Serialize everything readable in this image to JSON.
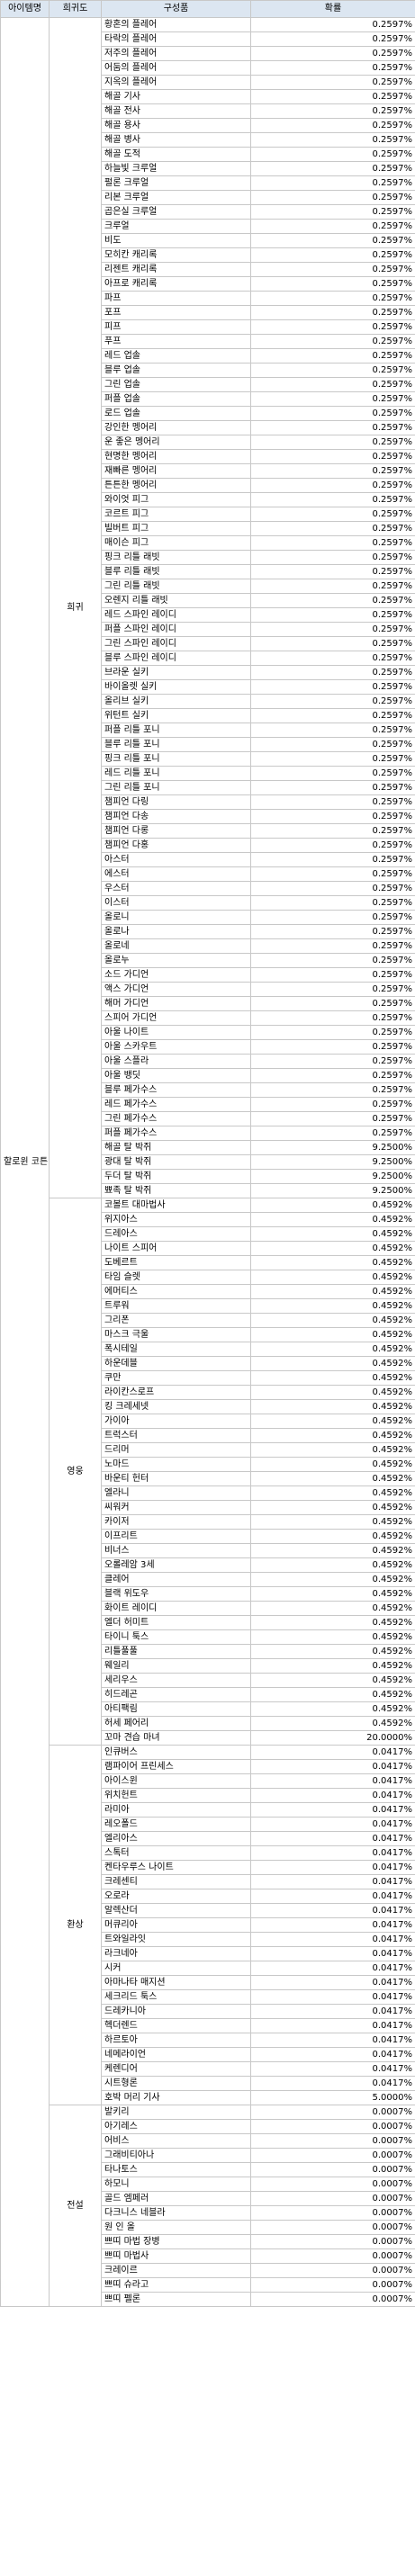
{
  "headers": [
    "아이템명",
    "희귀도",
    "구성품",
    "확률"
  ],
  "item_name": "할로윈 코튼",
  "groups": [
    {
      "grade": "희귀",
      "rows": [
        [
          "황혼의 플레어",
          "0.2597%"
        ],
        [
          "타락의 플레어",
          "0.2597%"
        ],
        [
          "저주의 플레어",
          "0.2597%"
        ],
        [
          "어둠의 플레어",
          "0.2597%"
        ],
        [
          "지옥의 플레어",
          "0.2597%"
        ],
        [
          "해골 기사",
          "0.2597%"
        ],
        [
          "해골 전사",
          "0.2597%"
        ],
        [
          "해골 용사",
          "0.2597%"
        ],
        [
          "해골 병사",
          "0.2597%"
        ],
        [
          "해골 도적",
          "0.2597%"
        ],
        [
          "하늘빛 크루얼",
          "0.2597%"
        ],
        [
          "펄론 크루얼",
          "0.2597%"
        ],
        [
          "리본 크루얼",
          "0.2597%"
        ],
        [
          "곱은실 크루얼",
          "0.2597%"
        ],
        [
          "크루얼",
          "0.2597%"
        ],
        [
          "비도",
          "0.2597%"
        ],
        [
          "모히칸 캐리록",
          "0.2597%"
        ],
        [
          "리젠트 캐리록",
          "0.2597%"
        ],
        [
          "아프로 캐리록",
          "0.2597%"
        ],
        [
          "파프",
          "0.2597%"
        ],
        [
          "포프",
          "0.2597%"
        ],
        [
          "피프",
          "0.2597%"
        ],
        [
          "푸프",
          "0.2597%"
        ],
        [
          "레드 업솔",
          "0.2597%"
        ],
        [
          "블루 업솔",
          "0.2597%"
        ],
        [
          "그린 업솔",
          "0.2597%"
        ],
        [
          "퍼플 업솔",
          "0.2597%"
        ],
        [
          "로드 업솔",
          "0.2597%"
        ],
        [
          "강인한 멩어리",
          "0.2597%"
        ],
        [
          "운 좋은 멩어리",
          "0.2597%"
        ],
        [
          "현명한 멩어리",
          "0.2597%"
        ],
        [
          "재빠른 멩어리",
          "0.2597%"
        ],
        [
          "튼튼한 멩어리",
          "0.2597%"
        ],
        [
          "와이엇 피그",
          "0.2597%"
        ],
        [
          "코르트 피그",
          "0.2597%"
        ],
        [
          "빌버트 피그",
          "0.2597%"
        ],
        [
          "매이슨 피그",
          "0.2597%"
        ],
        [
          "핑크 리틀 래빗",
          "0.2597%"
        ],
        [
          "블루 리틀 래빗",
          "0.2597%"
        ],
        [
          "그린 리틀 래빗",
          "0.2597%"
        ],
        [
          "오렌지 리틀 래빗",
          "0.2597%"
        ],
        [
          "레드 스파인 레이디",
          "0.2597%"
        ],
        [
          "퍼플 스파인 레이디",
          "0.2597%"
        ],
        [
          "그린 스파인 레이디",
          "0.2597%"
        ],
        [
          "블루 스파인 레이디",
          "0.2597%"
        ],
        [
          "브라운 실키",
          "0.2597%"
        ],
        [
          "바이올렛 실키",
          "0.2597%"
        ],
        [
          "올리브 실키",
          "0.2597%"
        ],
        [
          "위턴트 실키",
          "0.2597%"
        ],
        [
          "퍼플 리틀 포니",
          "0.2597%"
        ],
        [
          "블루 리틀 포니",
          "0.2597%"
        ],
        [
          "핑크 리틀 포니",
          "0.2597%"
        ],
        [
          "레드 리틀 포니",
          "0.2597%"
        ],
        [
          "그린 리틀 포니",
          "0.2597%"
        ],
        [
          "챔피언 다링",
          "0.2597%"
        ],
        [
          "챔피언 다송",
          "0.2597%"
        ],
        [
          "챔피언 다롱",
          "0.2597%"
        ],
        [
          "챔피언 다홍",
          "0.2597%"
        ],
        [
          "아스터",
          "0.2597%"
        ],
        [
          "에스터",
          "0.2597%"
        ],
        [
          "우스터",
          "0.2597%"
        ],
        [
          "이스터",
          "0.2597%"
        ],
        [
          "올로니",
          "0.2597%"
        ],
        [
          "올로나",
          "0.2597%"
        ],
        [
          "올로네",
          "0.2597%"
        ],
        [
          "올로누",
          "0.2597%"
        ],
        [
          "소드 가디언",
          "0.2597%"
        ],
        [
          "액스 가디언",
          "0.2597%"
        ],
        [
          "해머 가디언",
          "0.2597%"
        ],
        [
          "스피어 가디언",
          "0.2597%"
        ],
        [
          "아울 나이트",
          "0.2597%"
        ],
        [
          "아울 스카우트",
          "0.2597%"
        ],
        [
          "아울 스플라",
          "0.2597%"
        ],
        [
          "아울 뱅딧",
          "0.2597%"
        ],
        [
          "블루 페가수스",
          "0.2597%"
        ],
        [
          "레드 페가수스",
          "0.2597%"
        ],
        [
          "그린 페가수스",
          "0.2597%"
        ],
        [
          "퍼플 페가수스",
          "0.2597%"
        ],
        [
          "해골 탈 박쥐",
          "9.2500%"
        ],
        [
          "광대 탈 박쥐",
          "9.2500%"
        ],
        [
          "두더 탈 박쥐",
          "9.2500%"
        ],
        [
          "뾰족 탈 박쥐",
          "9.2500%"
        ]
      ]
    },
    {
      "grade": "영웅",
      "rows": [
        [
          "코볼트 대마법사",
          "0.4592%"
        ],
        [
          "위지아스",
          "0.4592%"
        ],
        [
          "드레아스",
          "0.4592%"
        ],
        [
          "나이트 스피어",
          "0.4592%"
        ],
        [
          "도베르트",
          "0.4592%"
        ],
        [
          "타임 슬렛",
          "0.4592%"
        ],
        [
          "에머티스",
          "0.4592%"
        ],
        [
          "트루워",
          "0.4592%"
        ],
        [
          "그리폰",
          "0.4592%"
        ],
        [
          "마스크 극울",
          "0.4592%"
        ],
        [
          "폭시테일",
          "0.4592%"
        ],
        [
          "하운데블",
          "0.4592%"
        ],
        [
          "쿠만",
          "0.4592%"
        ],
        [
          "라이칸스로프",
          "0.4592%"
        ],
        [
          "킹 크레세넷",
          "0.4592%"
        ],
        [
          "가이아",
          "0.4592%"
        ],
        [
          "트럭스터",
          "0.4592%"
        ],
        [
          "드리머",
          "0.4592%"
        ],
        [
          "노마드",
          "0.4592%"
        ],
        [
          "바운티 헌터",
          "0.4592%"
        ],
        [
          "엘라니",
          "0.4592%"
        ],
        [
          "씨워커",
          "0.4592%"
        ],
        [
          "카이저",
          "0.4592%"
        ],
        [
          "이프리트",
          "0.4592%"
        ],
        [
          "비너스",
          "0.4592%"
        ],
        [
          "오롤레암 3세",
          "0.4592%"
        ],
        [
          "클레어",
          "0.4592%"
        ],
        [
          "블랙 위도우",
          "0.4592%"
        ],
        [
          "화이트 레이디",
          "0.4592%"
        ],
        [
          "엘더 허미트",
          "0.4592%"
        ],
        [
          "타이니 툭스",
          "0.4592%"
        ],
        [
          "리틀풀풀",
          "0.4592%"
        ],
        [
          "웨일리",
          "0.4592%"
        ],
        [
          "세리우스",
          "0.4592%"
        ],
        [
          "히드레곤",
          "0.4592%"
        ],
        [
          "아티팩림",
          "0.4592%"
        ],
        [
          "허세 페어리",
          "0.4592%"
        ],
        [
          "꼬마 견습 마녀",
          "20.0000%"
        ]
      ]
    },
    {
      "grade": "환상",
      "rows": [
        [
          "인큐버스",
          "0.0417%"
        ],
        [
          "램파이어 프린세스",
          "0.0417%"
        ],
        [
          "아이스윈",
          "0.0417%"
        ],
        [
          "위치헌트",
          "0.0417%"
        ],
        [
          "라미아",
          "0.0417%"
        ],
        [
          "레오폴드",
          "0.0417%"
        ],
        [
          "엘리아스",
          "0.0417%"
        ],
        [
          "스톡터",
          "0.0417%"
        ],
        [
          "켄타우루스 나이트",
          "0.0417%"
        ],
        [
          "크레센티",
          "0.0417%"
        ],
        [
          "오로라",
          "0.0417%"
        ],
        [
          "알렉산더",
          "0.0417%"
        ],
        [
          "머큐리아",
          "0.0417%"
        ],
        [
          "트와일라잇",
          "0.0417%"
        ],
        [
          "라크네아",
          "0.0417%"
        ],
        [
          "시커",
          "0.0417%"
        ],
        [
          "아마나타 매지션",
          "0.0417%"
        ],
        [
          "세크리드 툭스",
          "0.0417%"
        ],
        [
          "드레카니아",
          "0.0417%"
        ],
        [
          "헥더렌드",
          "0.0417%"
        ],
        [
          "하르토아",
          "0.0417%"
        ],
        [
          "네메라이언",
          "0.0417%"
        ],
        [
          "케렌디어",
          "0.0417%"
        ],
        [
          "시트형론",
          "0.0417%"
        ],
        [
          "호박 머리 기사",
          "5.0000%"
        ]
      ]
    },
    {
      "grade": "전설",
      "rows": [
        [
          "발키리",
          "0.0007%"
        ],
        [
          "아기레스",
          "0.0007%"
        ],
        [
          "어비스",
          "0.0007%"
        ],
        [
          "그래비티아나",
          "0.0007%"
        ],
        [
          "타나토스",
          "0.0007%"
        ],
        [
          "하모니",
          "0.0007%"
        ],
        [
          "골드 엠페러",
          "0.0007%"
        ],
        [
          "다크니스 네블라",
          "0.0007%"
        ],
        [
          "원 인 올",
          "0.0007%"
        ],
        [
          "쁘띠 마법 장병",
          "0.0007%"
        ],
        [
          "쁘띠 마법사",
          "0.0007%"
        ],
        [
          "크레이르",
          "0.0007%"
        ],
        [
          "쁘띠 슈라고",
          "0.0007%"
        ],
        [
          "쁘띠 펠론",
          "0.0007%"
        ]
      ]
    }
  ]
}
